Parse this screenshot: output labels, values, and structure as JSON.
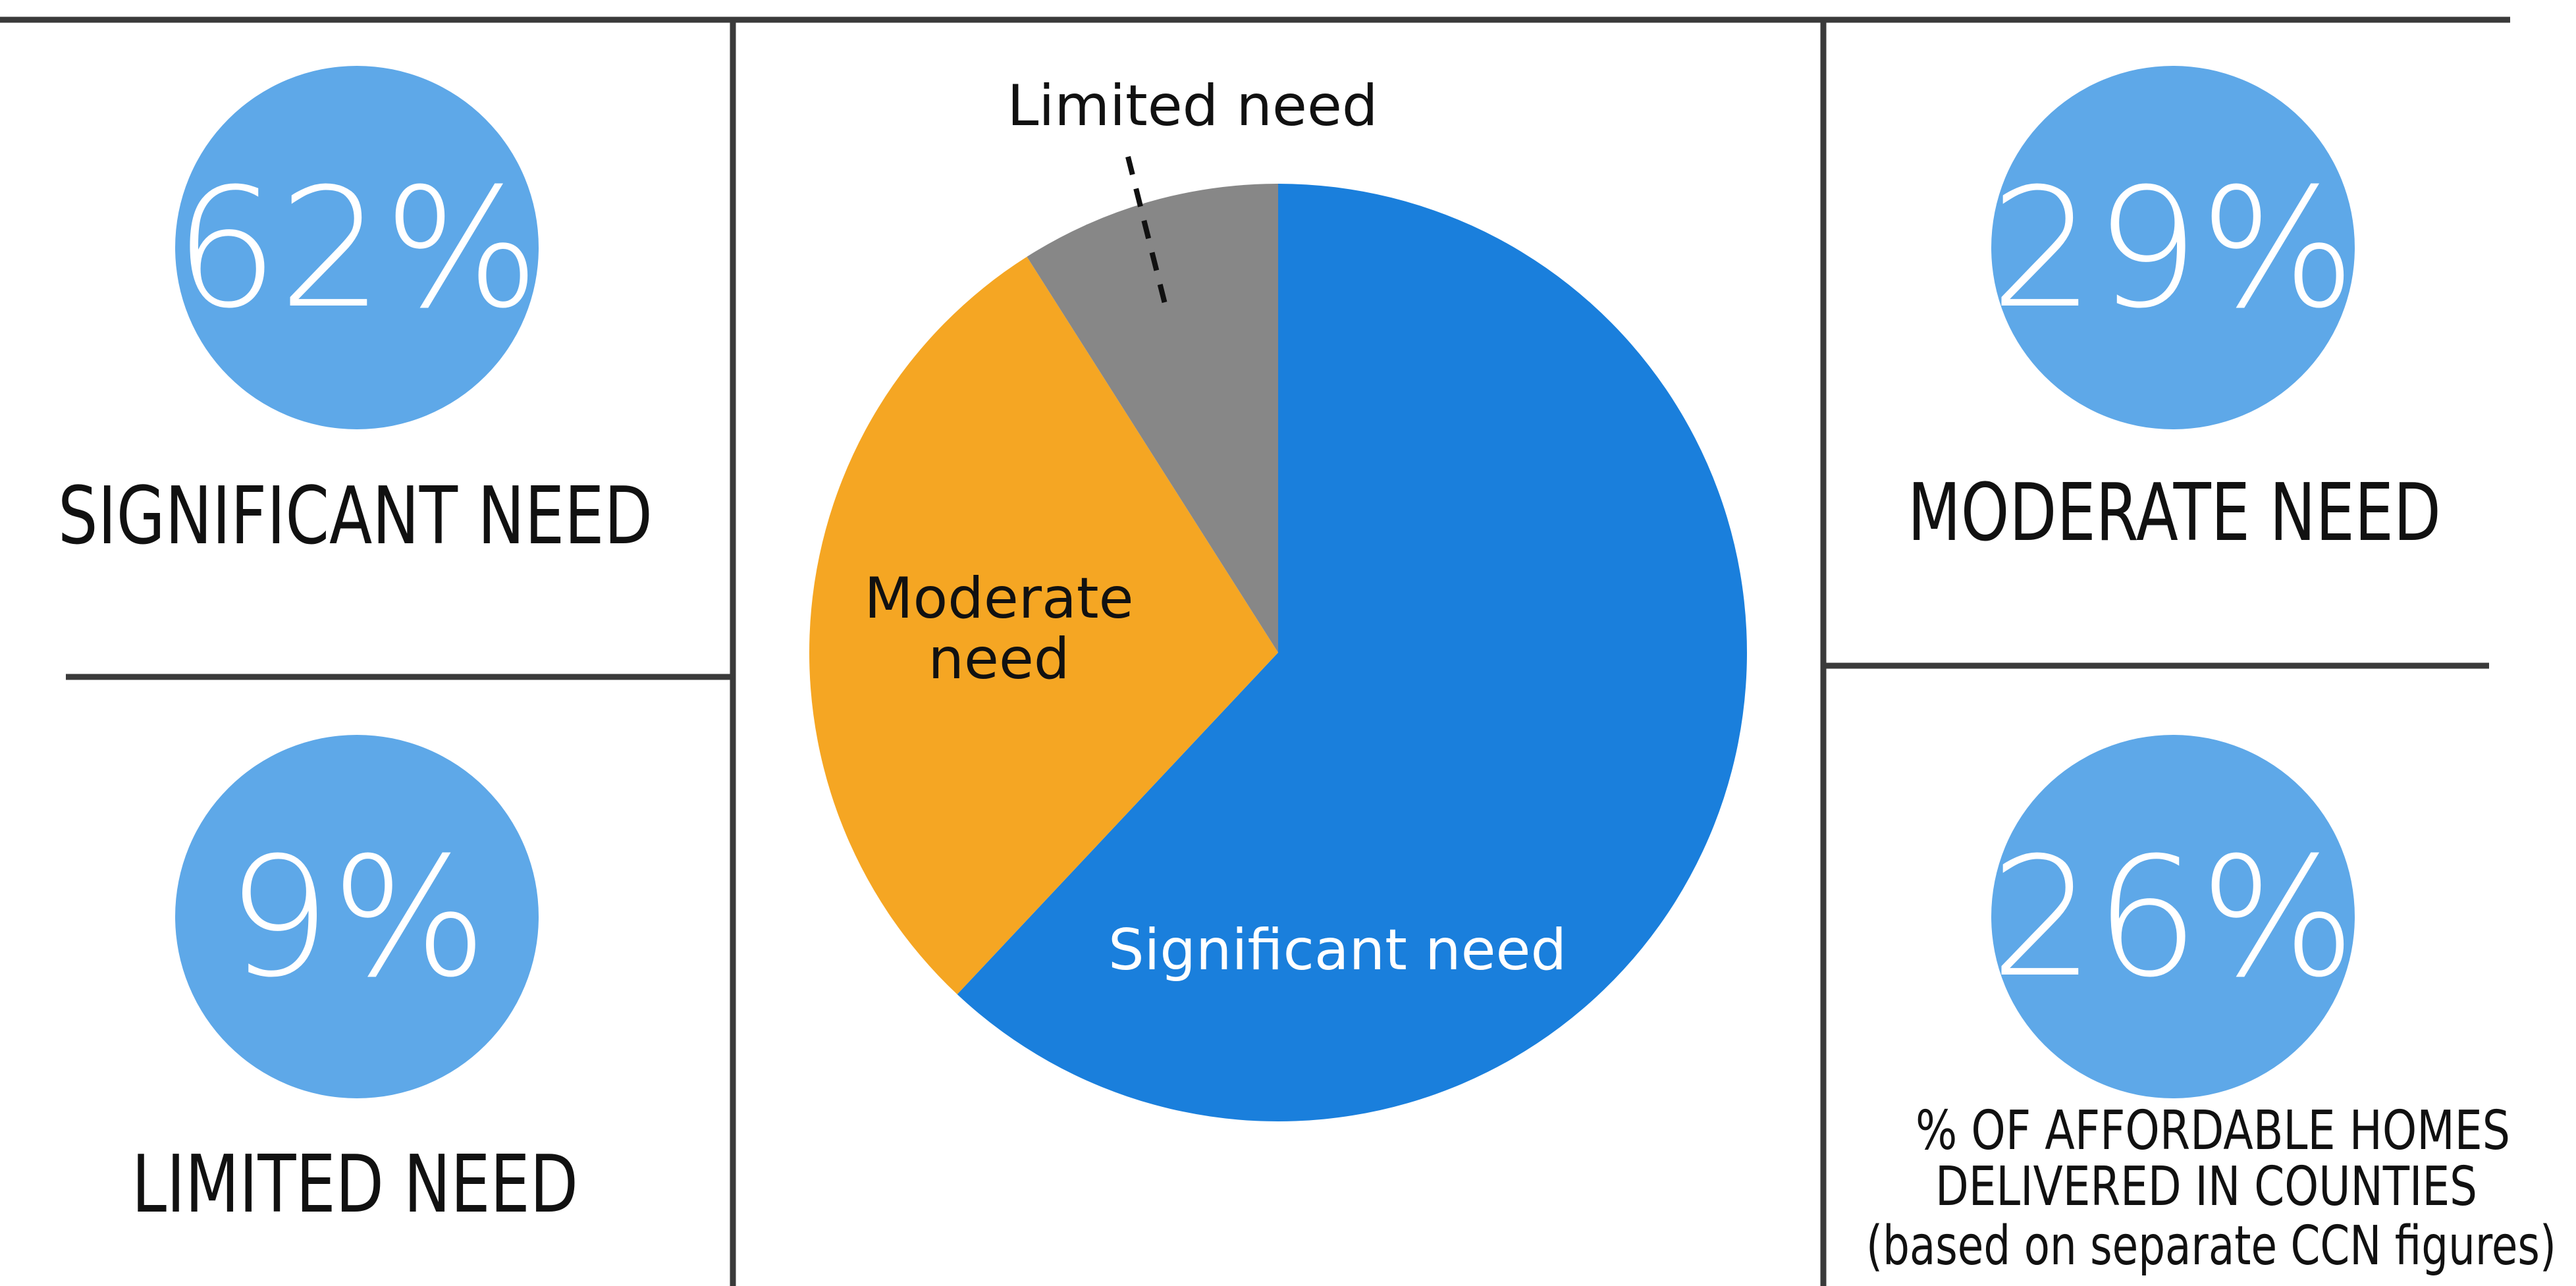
{
  "chart_data": {
    "type": "pie",
    "categories": [
      "Significant need",
      "Moderate need",
      "Limited need"
    ],
    "values": [
      62,
      29,
      9
    ],
    "colors": [
      "#1a7fdc",
      "#f5a623",
      "#878787"
    ]
  },
  "cards": [
    {
      "value": "62%",
      "label": "SIGNIFICANT NEED"
    },
    {
      "value": "9%",
      "label": "LIMITED NEED"
    },
    {
      "value": "29%",
      "label": "MODERATE NEED"
    },
    {
      "value": "26%",
      "label": [
        "% OF AFFORDABLE HOMES",
        "DELIVERED IN COUNTIES",
        "(based on separate CCN figures)"
      ]
    }
  ]
}
